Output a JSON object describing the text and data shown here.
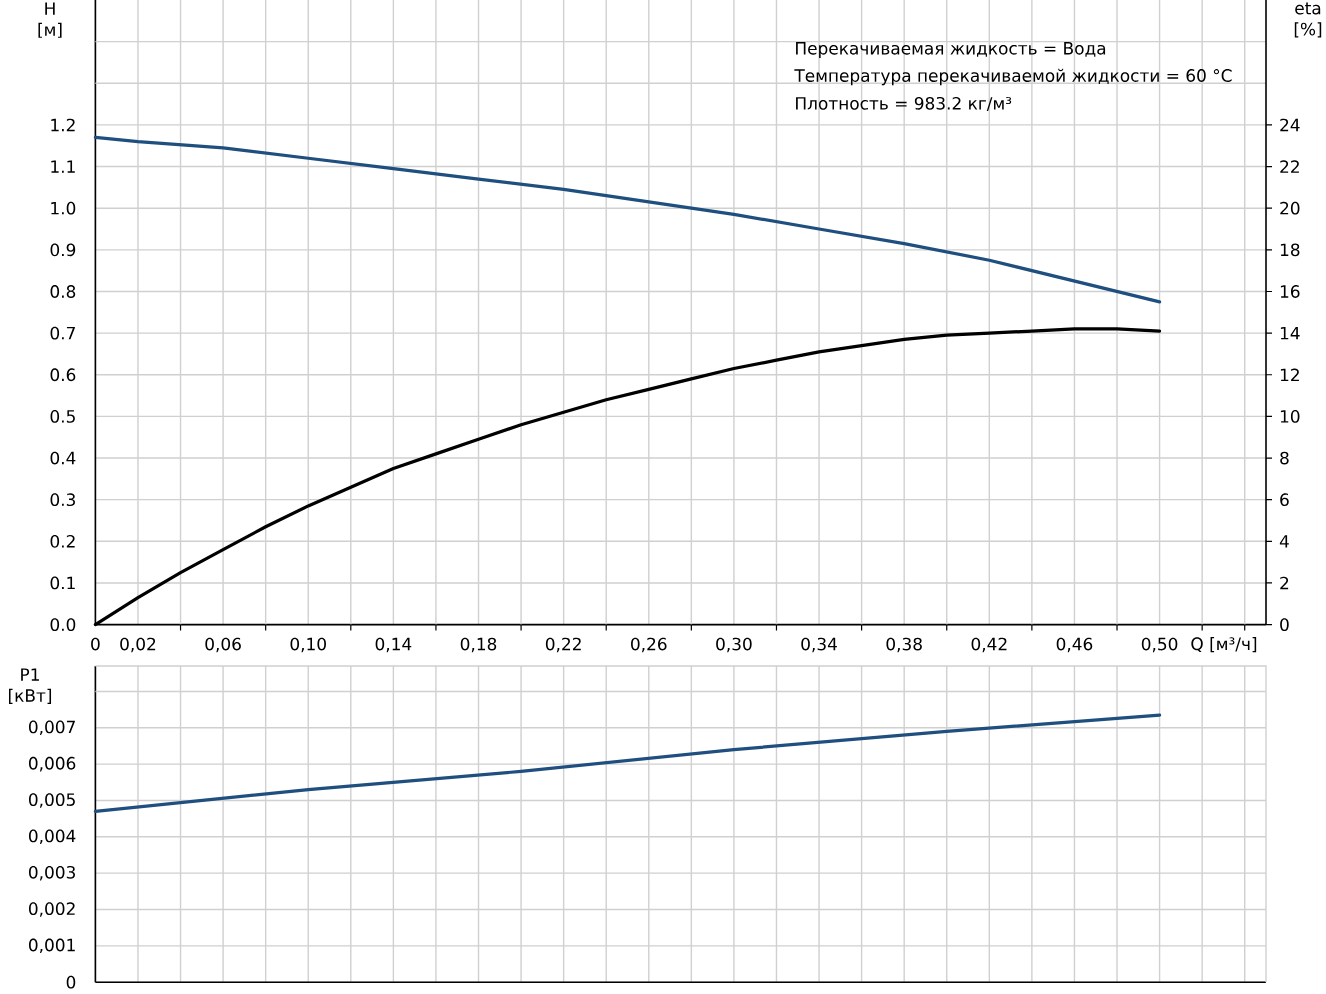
{
  "chart_data": [
    {
      "type": "line",
      "xlabel": "Q [м³/ч]",
      "ylabel": "H [м]",
      "y2label": "eta [%]",
      "xlim": [
        0,
        0.55
      ],
      "xticks": [
        0,
        {
          "value": 0.02,
          "label": "0,02"
        },
        {
          "value": 0.04,
          "label": null
        },
        {
          "value": 0.06,
          "label": "0,06"
        },
        {
          "value": 0.08,
          "label": null
        },
        {
          "value": 0.1,
          "label": "0,10"
        },
        {
          "value": 0.12,
          "label": null
        },
        {
          "value": 0.14,
          "label": "0,14"
        },
        {
          "value": 0.16,
          "label": null
        },
        {
          "value": 0.18,
          "label": "0,18"
        },
        {
          "value": 0.2,
          "label": null
        },
        {
          "value": 0.22,
          "label": "0,22"
        },
        {
          "value": 0.24,
          "label": null
        },
        {
          "value": 0.26,
          "label": "0,26"
        },
        {
          "value": 0.28,
          "label": null
        },
        {
          "value": 0.3,
          "label": "0,30"
        },
        {
          "value": 0.32,
          "label": null
        },
        {
          "value": 0.34,
          "label": "0,34"
        },
        {
          "value": 0.36,
          "label": null
        },
        {
          "value": 0.38,
          "label": "0,38"
        },
        {
          "value": 0.4,
          "label": null
        },
        {
          "value": 0.42,
          "label": "0,42"
        },
        {
          "value": 0.44,
          "label": null
        },
        {
          "value": 0.46,
          "label": "0,46"
        },
        {
          "value": 0.48,
          "label": null
        },
        {
          "value": 0.5,
          "label": "0,50"
        },
        {
          "value": 0.52,
          "label": null
        },
        {
          "value": 0.54,
          "label": null
        }
      ],
      "ylim": [
        0,
        1.5
      ],
      "yticks": [
        {
          "value": 0,
          "label": "0.0"
        },
        0.1,
        0.2,
        0.3,
        0.4,
        0.5,
        0.6,
        0.7,
        0.8,
        0.9,
        {
          "value": 1,
          "label": "1.0"
        },
        1.1,
        1.2,
        {
          "value": 1.3,
          "label": null
        },
        {
          "value": 1.4,
          "label": null
        }
      ],
      "y2lim": [
        0,
        30
      ],
      "y2ticks": [
        0,
        2,
        4,
        6,
        8,
        10,
        12,
        14,
        16,
        18,
        20,
        22,
        24
      ],
      "grid": true,
      "series": [
        {
          "color": "#1f4f7f",
          "x": [
            0,
            0.02,
            0.06,
            0.1,
            0.14,
            0.18,
            0.22,
            0.26,
            0.3,
            0.34,
            0.38,
            0.42,
            0.46,
            0.5
          ],
          "values": [
            1.17,
            1.16,
            1.145,
            1.12,
            1.095,
            1.07,
            1.045,
            1.015,
            0.985,
            0.95,
            0.915,
            0.875,
            0.825,
            0.775
          ]
        },
        {
          "color": "#000000",
          "axis": "y2",
          "x": [
            0,
            0.02,
            0.04,
            0.06,
            0.08,
            0.1,
            0.12,
            0.14,
            0.16,
            0.18,
            0.2,
            0.22,
            0.24,
            0.26,
            0.28,
            0.3,
            0.32,
            0.34,
            0.36,
            0.38,
            0.4,
            0.42,
            0.44,
            0.46,
            0.48,
            0.5
          ],
          "values": [
            0,
            1.3,
            2.5,
            3.6,
            4.7,
            5.7,
            6.6,
            7.5,
            8.2,
            8.9,
            9.6,
            10.2,
            10.8,
            11.3,
            11.8,
            12.3,
            12.7,
            13.1,
            13.4,
            13.7,
            13.9,
            14.0,
            14.1,
            14.2,
            14.2,
            14.1
          ]
        }
      ],
      "annotations": [
        "Перекачиваемая жидкость = Вода",
        "Температура перекачиваемой жидкости = 60 °C",
        "Плотность = 983.2 кг/м³"
      ]
    },
    {
      "type": "line",
      "ylabel": "P1 [кВт]",
      "xlim": [
        0,
        0.55
      ],
      "xticks": [
        0,
        0.02,
        0.04,
        0.06,
        0.08,
        0.1,
        0.12,
        0.14,
        0.16,
        0.18,
        0.2,
        0.22,
        0.24,
        0.26,
        0.28,
        0.3,
        0.32,
        0.34,
        0.36,
        0.38,
        0.4,
        0.42,
        0.44,
        0.46,
        0.48,
        0.5,
        0.52,
        0.54
      ],
      "ylim": [
        0,
        0.0087
      ],
      "yticks": [
        0,
        {
          "value": 0.001,
          "label": "0,001"
        },
        {
          "value": 0.002,
          "label": "0,002"
        },
        {
          "value": 0.003,
          "label": "0,003"
        },
        {
          "value": 0.004,
          "label": "0,004"
        },
        {
          "value": 0.005,
          "label": "0,005"
        },
        {
          "value": 0.006,
          "label": "0,006"
        },
        {
          "value": 0.007,
          "label": "0,007"
        },
        {
          "value": 0.008,
          "label": null
        }
      ],
      "tick_labels": "y",
      "grid": true,
      "series": [
        {
          "color": "#1f4f7f",
          "x": [
            0,
            0.1,
            0.2,
            0.3,
            0.4,
            0.5
          ],
          "values": [
            0.0047,
            0.0053,
            0.0058,
            0.0064,
            0.0069,
            0.00735
          ]
        }
      ]
    }
  ]
}
